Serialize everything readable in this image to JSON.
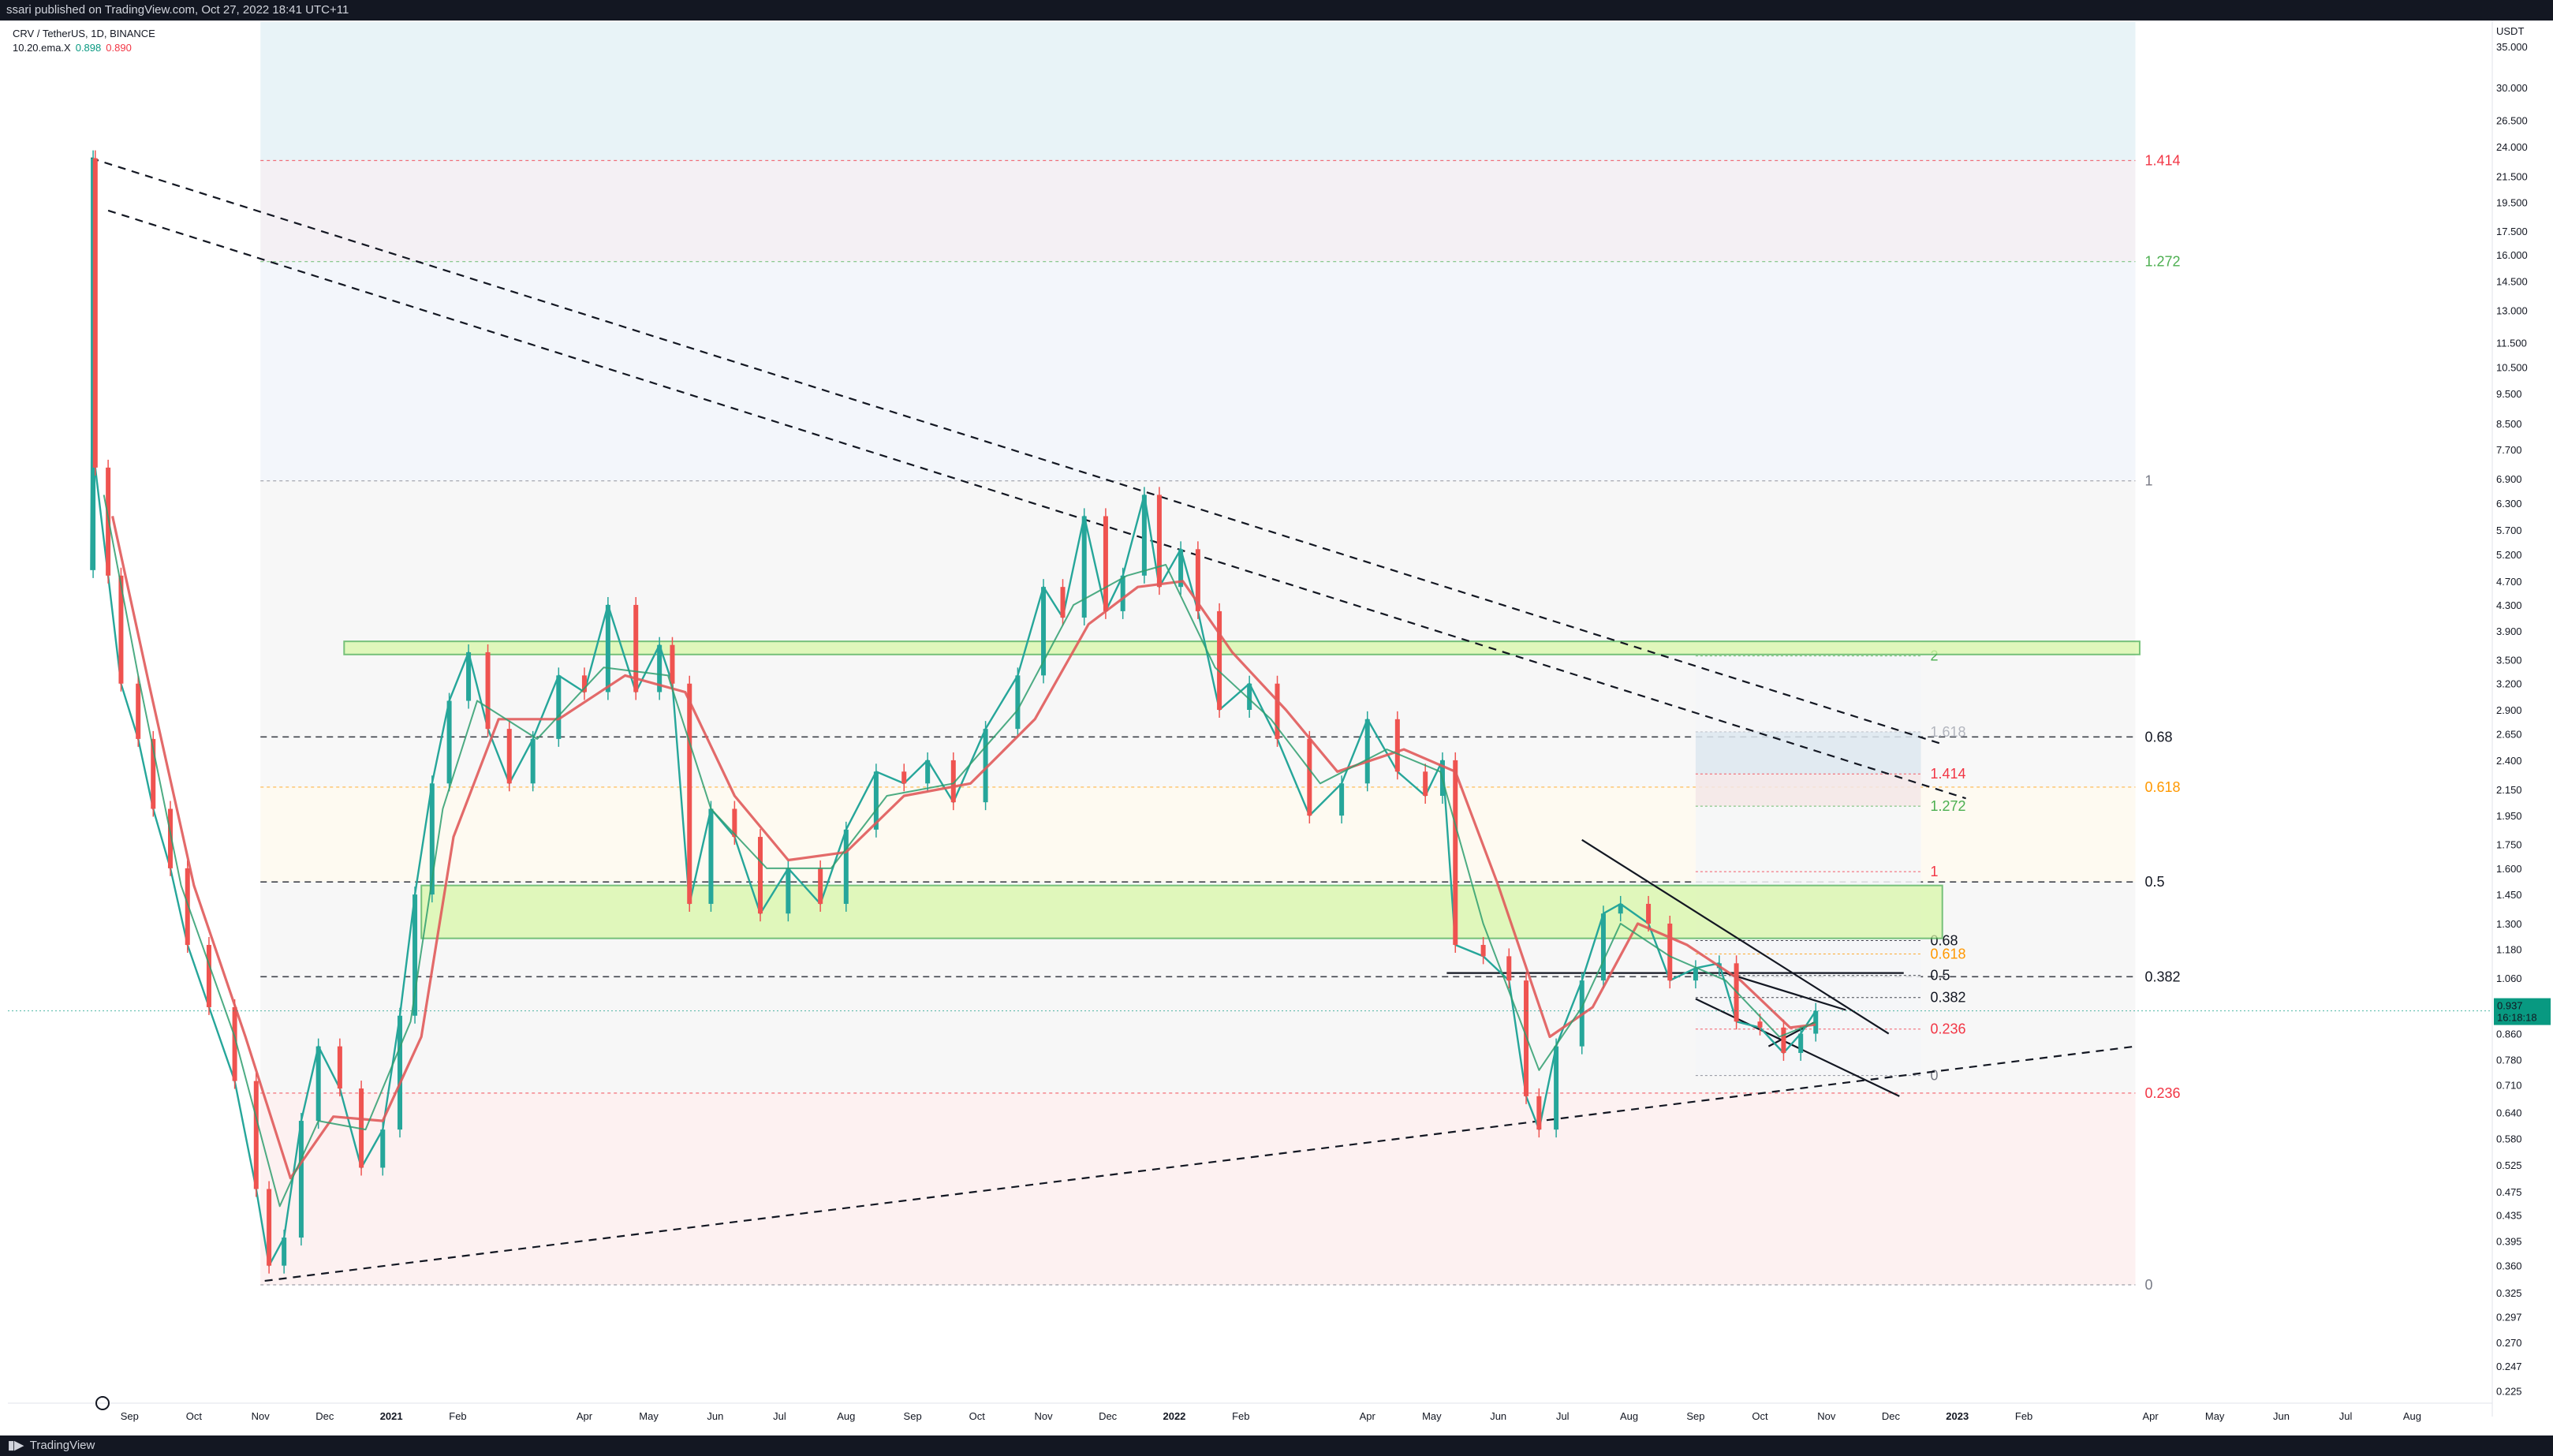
{
  "header": {
    "publisher": "ssari published on TradingView.com, Oct 27, 2022 18:41 UTC+11"
  },
  "legend": {
    "symbol": "CRV / TetherUS, 1D, BINANCE",
    "indicator": "10.20.ema.X",
    "ema_fast": "0.898",
    "ema_slow": "0.890"
  },
  "footer": {
    "brand": "TradingView"
  },
  "chart_data": {
    "type": "candlestick",
    "y_scale": "log",
    "ylim": [
      0.22,
      38
    ],
    "axis_currency": "USDT",
    "y_ticks": [
      "35.000",
      "30.000",
      "26.500",
      "24.000",
      "21.500",
      "19.500",
      "17.500",
      "16.000",
      "14.500",
      "13.000",
      "11.500",
      "10.500",
      "9.500",
      "8.500",
      "7.700",
      "6.900",
      "6.300",
      "5.700",
      "5.200",
      "4.700",
      "4.300",
      "3.900",
      "3.500",
      "3.200",
      "2.900",
      "2.650",
      "2.400",
      "2.150",
      "1.950",
      "1.750",
      "1.600",
      "1.450",
      "1.300",
      "1.180",
      "1.060",
      "0.960",
      "0.860",
      "0.780",
      "0.710",
      "0.640",
      "0.580",
      "0.525",
      "0.475",
      "0.435",
      "0.395",
      "0.360",
      "0.325",
      "0.297",
      "0.270",
      "0.247",
      "0.225"
    ],
    "x_labels": [
      "Sep",
      "Oct",
      "Nov",
      "Dec",
      "2021",
      "Feb",
      "Apr",
      "May",
      "Jun",
      "Jul",
      "Aug",
      "Sep",
      "Oct",
      "Nov",
      "Dec",
      "2022",
      "Feb",
      "Apr",
      "May",
      "Jun",
      "Jul",
      "Aug",
      "Sep",
      "Oct",
      "Nov",
      "Dec",
      "2023",
      "Feb",
      "Apr",
      "May",
      "Jun",
      "Jul",
      "Aug"
    ],
    "last_price": {
      "value": "0.937",
      "countdown": "16:18:18"
    },
    "price_path": [
      [
        "2020-08-14",
        4.9
      ],
      [
        "2020-08-15",
        23.0
      ],
      [
        "2020-08-16",
        7.2
      ],
      [
        "2020-08-22",
        4.8
      ],
      [
        "2020-08-28",
        3.2
      ],
      [
        "2020-09-05",
        2.6
      ],
      [
        "2020-09-12",
        2.0
      ],
      [
        "2020-09-20",
        1.6
      ],
      [
        "2020-09-28",
        1.2
      ],
      [
        "2020-10-08",
        0.95
      ],
      [
        "2020-10-20",
        0.72
      ],
      [
        "2020-10-30",
        0.48
      ],
      [
        "2020-11-05",
        0.36
      ],
      [
        "2020-11-12",
        0.4
      ],
      [
        "2020-11-20",
        0.62
      ],
      [
        "2020-11-28",
        0.82
      ],
      [
        "2020-12-08",
        0.7
      ],
      [
        "2020-12-18",
        0.52
      ],
      [
        "2020-12-28",
        0.6
      ],
      [
        "2021-01-05",
        0.92
      ],
      [
        "2021-01-12",
        1.45
      ],
      [
        "2021-01-20",
        2.2
      ],
      [
        "2021-01-28",
        3.0
      ],
      [
        "2021-02-06",
        3.6
      ],
      [
        "2021-02-15",
        2.7
      ],
      [
        "2021-02-25",
        2.2
      ],
      [
        "2021-03-08",
        2.6
      ],
      [
        "2021-03-20",
        3.3
      ],
      [
        "2021-04-01",
        3.1
      ],
      [
        "2021-04-12",
        4.3
      ],
      [
        "2021-04-25",
        3.1
      ],
      [
        "2021-05-06",
        3.7
      ],
      [
        "2021-05-12",
        3.2
      ],
      [
        "2021-05-20",
        1.4
      ],
      [
        "2021-05-30",
        2.0
      ],
      [
        "2021-06-10",
        1.8
      ],
      [
        "2021-06-22",
        1.35
      ],
      [
        "2021-07-05",
        1.6
      ],
      [
        "2021-07-20",
        1.4
      ],
      [
        "2021-08-01",
        1.85
      ],
      [
        "2021-08-15",
        2.3
      ],
      [
        "2021-08-28",
        2.2
      ],
      [
        "2021-09-08",
        2.4
      ],
      [
        "2021-09-20",
        2.05
      ],
      [
        "2021-10-05",
        2.7
      ],
      [
        "2021-10-20",
        3.3
      ],
      [
        "2021-11-01",
        4.6
      ],
      [
        "2021-11-10",
        4.1
      ],
      [
        "2021-11-20",
        6.0
      ],
      [
        "2021-11-30",
        4.2
      ],
      [
        "2021-12-08",
        4.8
      ],
      [
        "2021-12-18",
        6.5
      ],
      [
        "2021-12-25",
        4.6
      ],
      [
        "2022-01-04",
        5.3
      ],
      [
        "2022-01-12",
        4.2
      ],
      [
        "2022-01-22",
        2.9
      ],
      [
        "2022-02-05",
        3.2
      ],
      [
        "2022-02-18",
        2.6
      ],
      [
        "2022-03-05",
        1.95
      ],
      [
        "2022-03-20",
        2.2
      ],
      [
        "2022-04-01",
        2.8
      ],
      [
        "2022-04-15",
        2.3
      ],
      [
        "2022-04-28",
        2.1
      ],
      [
        "2022-05-06",
        2.4
      ],
      [
        "2022-05-12",
        1.2
      ],
      [
        "2022-05-25",
        1.15
      ],
      [
        "2022-06-06",
        1.05
      ],
      [
        "2022-06-14",
        0.68
      ],
      [
        "2022-06-20",
        0.6
      ],
      [
        "2022-06-28",
        0.82
      ],
      [
        "2022-07-10",
        1.05
      ],
      [
        "2022-07-20",
        1.35
      ],
      [
        "2022-07-28",
        1.4
      ],
      [
        "2022-08-10",
        1.3
      ],
      [
        "2022-08-20",
        1.05
      ],
      [
        "2022-09-01",
        1.1
      ],
      [
        "2022-09-12",
        1.12
      ],
      [
        "2022-09-20",
        0.9
      ],
      [
        "2022-10-01",
        0.88
      ],
      [
        "2022-10-12",
        0.8
      ],
      [
        "2022-10-20",
        0.86
      ],
      [
        "2022-10-27",
        0.937
      ]
    ],
    "ema_fast_path": [
      [
        "2020-08-20",
        6.5
      ],
      [
        "2020-09-05",
        3.3
      ],
      [
        "2020-09-25",
        1.5
      ],
      [
        "2020-10-20",
        0.85
      ],
      [
        "2020-11-10",
        0.45
      ],
      [
        "2020-11-28",
        0.62
      ],
      [
        "2020-12-20",
        0.6
      ],
      [
        "2021-01-10",
        0.9
      ],
      [
        "2021-01-25",
        2.0
      ],
      [
        "2021-02-10",
        3.0
      ],
      [
        "2021-03-10",
        2.6
      ],
      [
        "2021-04-10",
        3.4
      ],
      [
        "2021-05-10",
        3.3
      ],
      [
        "2021-05-30",
        2.0
      ],
      [
        "2021-06-25",
        1.6
      ],
      [
        "2021-07-25",
        1.6
      ],
      [
        "2021-08-20",
        2.1
      ],
      [
        "2021-09-20",
        2.2
      ],
      [
        "2021-10-20",
        2.9
      ],
      [
        "2021-11-15",
        4.3
      ],
      [
        "2021-12-10",
        4.8
      ],
      [
        "2021-12-28",
        5.0
      ],
      [
        "2022-01-20",
        3.4
      ],
      [
        "2022-02-15",
        2.8
      ],
      [
        "2022-03-10",
        2.2
      ],
      [
        "2022-04-10",
        2.5
      ],
      [
        "2022-05-05",
        2.3
      ],
      [
        "2022-05-25",
        1.3
      ],
      [
        "2022-06-20",
        0.75
      ],
      [
        "2022-07-10",
        0.95
      ],
      [
        "2022-07-28",
        1.3
      ],
      [
        "2022-08-20",
        1.15
      ],
      [
        "2022-09-15",
        1.05
      ],
      [
        "2022-10-10",
        0.85
      ],
      [
        "2022-10-27",
        0.898
      ]
    ],
    "ema_slow_path": [
      [
        "2020-08-24",
        6.0
      ],
      [
        "2020-09-10",
        3.2
      ],
      [
        "2020-10-01",
        1.5
      ],
      [
        "2020-10-25",
        0.85
      ],
      [
        "2020-11-15",
        0.5
      ],
      [
        "2020-12-05",
        0.63
      ],
      [
        "2020-12-28",
        0.62
      ],
      [
        "2021-01-15",
        0.85
      ],
      [
        "2021-01-30",
        1.8
      ],
      [
        "2021-02-20",
        2.8
      ],
      [
        "2021-03-20",
        2.8
      ],
      [
        "2021-04-20",
        3.3
      ],
      [
        "2021-05-18",
        3.1
      ],
      [
        "2021-06-10",
        2.1
      ],
      [
        "2021-07-05",
        1.65
      ],
      [
        "2021-08-01",
        1.7
      ],
      [
        "2021-08-28",
        2.1
      ],
      [
        "2021-09-28",
        2.2
      ],
      [
        "2021-10-28",
        2.8
      ],
      [
        "2021-11-22",
        4.0
      ],
      [
        "2021-12-15",
        4.6
      ],
      [
        "2022-01-05",
        4.7
      ],
      [
        "2022-01-28",
        3.6
      ],
      [
        "2022-02-22",
        2.9
      ],
      [
        "2022-03-18",
        2.3
      ],
      [
        "2022-04-18",
        2.5
      ],
      [
        "2022-05-12",
        2.3
      ],
      [
        "2022-06-01",
        1.5
      ],
      [
        "2022-06-25",
        0.85
      ],
      [
        "2022-07-15",
        0.95
      ],
      [
        "2022-08-05",
        1.3
      ],
      [
        "2022-08-28",
        1.2
      ],
      [
        "2022-09-22",
        1.05
      ],
      [
        "2022-10-15",
        0.88
      ],
      [
        "2022-10-27",
        0.89
      ]
    ],
    "fib_retracement_major": {
      "start": "2020-11-01",
      "end": "2023-03-25",
      "levels": [
        {
          "label": "1.414",
          "price": 22.8,
          "color": "#f23645"
        },
        {
          "label": "1.272",
          "price": 15.6,
          "color": "#4caf50"
        },
        {
          "label": "1",
          "price": 6.85,
          "color": "#787b86"
        },
        {
          "label": "0.68",
          "price": 2.62,
          "color": "#131722"
        },
        {
          "label": "0.618",
          "price": 2.17,
          "color": "#ff9800"
        },
        {
          "label": "0.5",
          "price": 1.52,
          "color": "#131722"
        },
        {
          "label": "0.382",
          "price": 1.065,
          "color": "#131722"
        },
        {
          "label": "0.236",
          "price": 0.688,
          "color": "#f23645"
        },
        {
          "label": "0",
          "price": 0.335,
          "color": "#787b86"
        }
      ]
    },
    "fib_retracement_minor": {
      "start": "2022-09-01",
      "end": "2022-12-15",
      "levels": [
        {
          "label": "2",
          "price": 3.55,
          "color": "#4caf50"
        },
        {
          "label": "1.618",
          "price": 2.67,
          "color": "#b2b5be"
        },
        {
          "label": "1.414",
          "price": 2.28,
          "color": "#f23645"
        },
        {
          "label": "1.272",
          "price": 2.02,
          "color": "#4caf50"
        },
        {
          "label": "1",
          "price": 1.58,
          "color": "#f23645"
        },
        {
          "label": "0.68",
          "price": 1.22,
          "color": "#131722"
        },
        {
          "label": "0.618",
          "price": 1.16,
          "color": "#ff9800"
        },
        {
          "label": "0.5",
          "price": 1.07,
          "color": "#131722"
        },
        {
          "label": "0.382",
          "price": 0.985,
          "color": "#131722"
        },
        {
          "label": "0.236",
          "price": 0.875,
          "color": "#f23645"
        },
        {
          "label": "0",
          "price": 0.735,
          "color": "#787b86"
        }
      ]
    },
    "zones": [
      {
        "name": "upper-resistance-zone",
        "start": "2020-12-10",
        "end": "2023-03-27",
        "top": 3.75,
        "bottom": 3.57
      },
      {
        "name": "middle-support-zone",
        "start": "2021-01-15",
        "end": "2022-12-25",
        "top": 1.5,
        "bottom": 1.23
      }
    ],
    "trendlines": [
      {
        "name": "upper-downtrend-1",
        "style": "dashed",
        "p1": [
          "2020-08-14",
          23.0
        ],
        "p2": [
          "2022-12-25",
          2.55
        ]
      },
      {
        "name": "upper-downtrend-2",
        "style": "dashed",
        "p1": [
          "2020-08-22",
          18.9
        ],
        "p2": [
          "2023-01-05",
          2.08
        ]
      },
      {
        "name": "lower-uptrend",
        "style": "dashed",
        "p1": [
          "2020-11-03",
          0.34
        ],
        "p2": [
          "2023-03-25",
          0.82
        ]
      },
      {
        "name": "channel-upper",
        "style": "solid",
        "p1": [
          "2022-07-10",
          1.78
        ],
        "p2": [
          "2022-11-30",
          0.86
        ]
      },
      {
        "name": "channel-lower",
        "style": "solid",
        "p1": [
          "2022-09-01",
          0.98
        ],
        "p2": [
          "2022-12-05",
          0.68
        ]
      },
      {
        "name": "horizontal-support",
        "style": "solid",
        "p1": [
          "2022-05-08",
          1.08
        ],
        "p2": [
          "2022-12-07",
          1.08
        ]
      },
      {
        "name": "flag-upper",
        "style": "solid",
        "p1": [
          "2022-09-15",
          1.08
        ],
        "p2": [
          "2022-11-10",
          0.94
        ]
      },
      {
        "name": "flag-lower",
        "style": "solid",
        "p1": [
          "2022-10-05",
          0.82
        ],
        "p2": [
          "2022-10-27",
          0.9
        ]
      }
    ]
  }
}
